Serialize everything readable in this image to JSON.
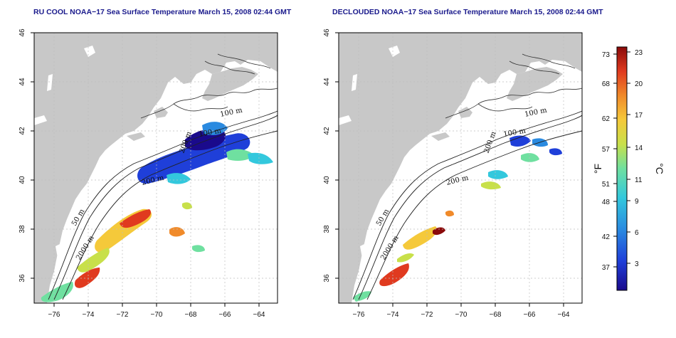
{
  "titles": {
    "left": "RU COOL NOAA−17 Sea Surface Temperature March 15, 2008 02:44 GMT",
    "right": "DECLOUDED NOAA−17 Sea Surface Temperature March 15, 2008 02:44 GMT"
  },
  "axes": {
    "x_ticks": [
      "−76",
      "−74",
      "−72",
      "−70",
      "−68",
      "−66",
      "−64"
    ],
    "y_ticks": [
      "46",
      "44",
      "42",
      "40",
      "38",
      "36"
    ],
    "lon_range": [
      -77.2,
      -63.0
    ],
    "lat_range": [
      35.0,
      46.0
    ]
  },
  "contour_labels": {
    "left": [
      "100 m",
      "100 m",
      "200 m",
      "50 m",
      "2000 m",
      "200 m"
    ],
    "right": [
      "100 m",
      "100 m",
      "200 m",
      "50 m",
      "2000 m",
      "200 m"
    ]
  },
  "colorbar": {
    "fahrenheit_ticks": [
      "73",
      "68",
      "62",
      "57",
      "51",
      "48",
      "42",
      "37"
    ],
    "celsius_ticks": [
      "23",
      "20",
      "17",
      "14",
      "11",
      "9",
      "6",
      "3"
    ],
    "fahrenheit_unit": "°F",
    "celsius_unit": "°C",
    "colors": [
      "#1a0a8c",
      "#1f3fd9",
      "#2a8ae0",
      "#33c8dd",
      "#6fe0a0",
      "#c8e04a",
      "#f5c93a",
      "#f08a2a",
      "#e03a1f",
      "#8a0a0a"
    ]
  },
  "colors": {
    "land": "#c8c8c8",
    "ocean": "#ffffff",
    "grid": "#bdbdbd",
    "title": "#1a1a8c"
  }
}
